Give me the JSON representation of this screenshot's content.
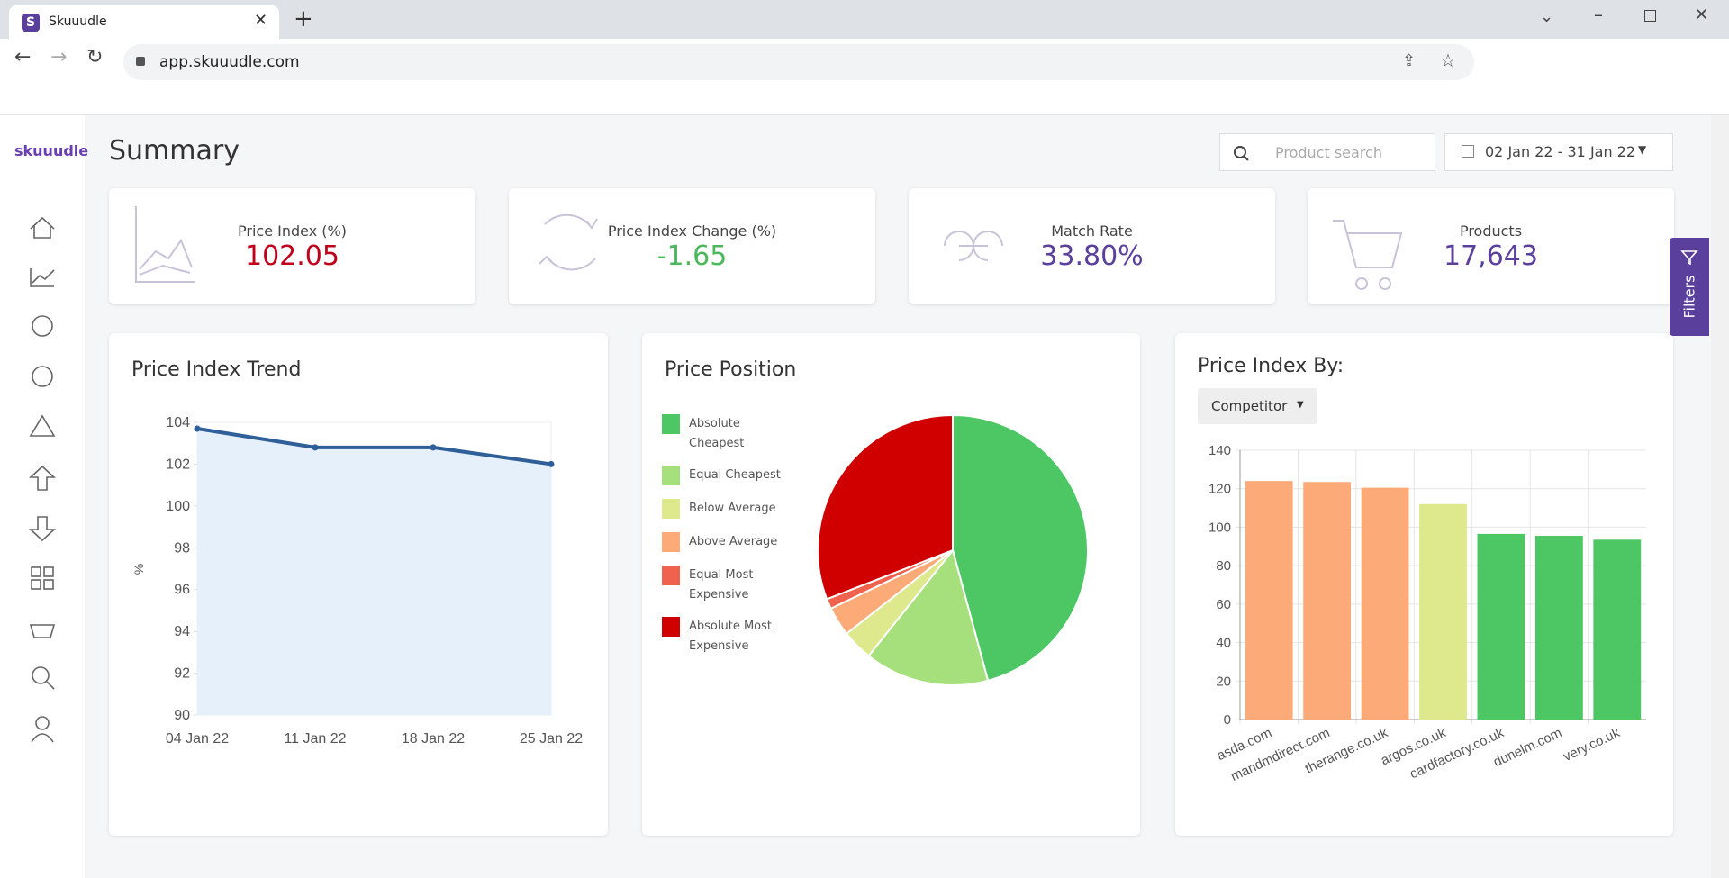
{
  "browser": {
    "tab_title": "Skuuudle",
    "url": "app.skuuudle.com"
  },
  "sidebar": {
    "logo": "skuuudle"
  },
  "header": {
    "title": "Summary",
    "search_placeholder": "Product search",
    "date_range": "02 Jan 22 - 31 Jan 22"
  },
  "filters_tab": "Filters",
  "kpis": [
    {
      "label": "Price Index (%)",
      "value": "102.05",
      "color": "#c0001a"
    },
    {
      "label": "Price Index Change (%)",
      "value": "-1.65",
      "color": "#4cb85c"
    },
    {
      "label": "Match Rate",
      "value": "33.80%",
      "color": "#5b3f9c"
    },
    {
      "label": "Products",
      "value": "17,643",
      "color": "#5b3f9c"
    }
  ],
  "price_index_trend": {
    "type": "line",
    "title": "Price Index Trend",
    "y_label": "%",
    "x": [
      "04 Jan 22",
      "11 Jan 22",
      "18 Jan 22",
      "25 Jan 22"
    ],
    "values": [
      103.7,
      102.8,
      102.8,
      102.0
    ],
    "color": "#2f5f98",
    "fill": "#e6f0fb",
    "ylim": [
      90,
      104
    ],
    "yticks": [
      90,
      92,
      94,
      96,
      98,
      100,
      102,
      104
    ]
  },
  "price_position": {
    "type": "pie",
    "title": "Price Position",
    "categories": [
      "Absolute Cheapest",
      "Equal Cheapest",
      "Below Average",
      "Above Average",
      "Equal Most Expensive",
      "Absolute Most Expensive"
    ],
    "values": [
      45.8,
      14.9,
      3.7,
      3.5,
      1.2,
      30.9
    ],
    "colors": [
      "#4cc764",
      "#a6e07c",
      "#dde98c",
      "#fcaa78",
      "#f0624d",
      "#d10000"
    ]
  },
  "price_index_by": {
    "type": "bar",
    "title": "Price Index By:",
    "dropdown": "Competitor",
    "categories": [
      "asda.com",
      "mandmdirect.com",
      "therange.co.uk",
      "argos.co.uk",
      "cardfactory.co.uk",
      "dunelm.com",
      "very.co.uk"
    ],
    "values": [
      124,
      123.5,
      120.5,
      112,
      96.5,
      95.5,
      93.5
    ],
    "colors": [
      "#fcaa78",
      "#fcaa78",
      "#fcaa78",
      "#dde98c",
      "#4cc764",
      "#4cc764",
      "#4cc764"
    ],
    "ylim": [
      0,
      140
    ],
    "yticks": [
      0,
      20,
      40,
      60,
      80,
      100,
      120,
      140
    ],
    "grid": true
  }
}
